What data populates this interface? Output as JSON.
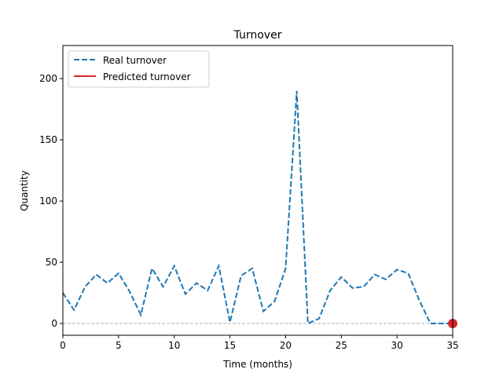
{
  "chart_data": {
    "type": "line",
    "title": "Turnover",
    "xlabel": "Time (months)",
    "ylabel": "Quantity",
    "xlim": [
      0,
      35
    ],
    "ylim": [
      -9.6,
      227
    ],
    "xticks": [
      0,
      5,
      10,
      15,
      20,
      25,
      30,
      35
    ],
    "yticks": [
      0,
      50,
      100,
      150,
      200
    ],
    "grid": false,
    "reference_line": {
      "y": 0,
      "style": "dashed",
      "color": "#b0b0b0"
    },
    "legend": {
      "placement": "top-left"
    },
    "series": [
      {
        "name": "Real turnover",
        "style": "dashed",
        "color": "#1f77b4",
        "x": [
          0,
          1,
          2,
          3,
          4,
          5,
          6,
          7,
          8,
          9,
          10,
          11,
          12,
          13,
          14,
          15,
          16,
          17,
          18,
          19,
          20,
          21,
          22,
          23,
          24,
          25,
          26,
          27,
          28,
          29,
          30,
          31,
          32,
          33,
          34,
          35
        ],
        "y": [
          25,
          11,
          30,
          40,
          33,
          41,
          26,
          7,
          45,
          30,
          47,
          24,
          33,
          27,
          47,
          1,
          39,
          45,
          10,
          18,
          45,
          190,
          0,
          4,
          27,
          38,
          29,
          30,
          40,
          36,
          44,
          41,
          19,
          0,
          0,
          0
        ]
      },
      {
        "name": "Predicted turnover",
        "style": "solid",
        "color": "#d62728",
        "x": [
          35
        ],
        "y": [
          0
        ]
      }
    ]
  }
}
